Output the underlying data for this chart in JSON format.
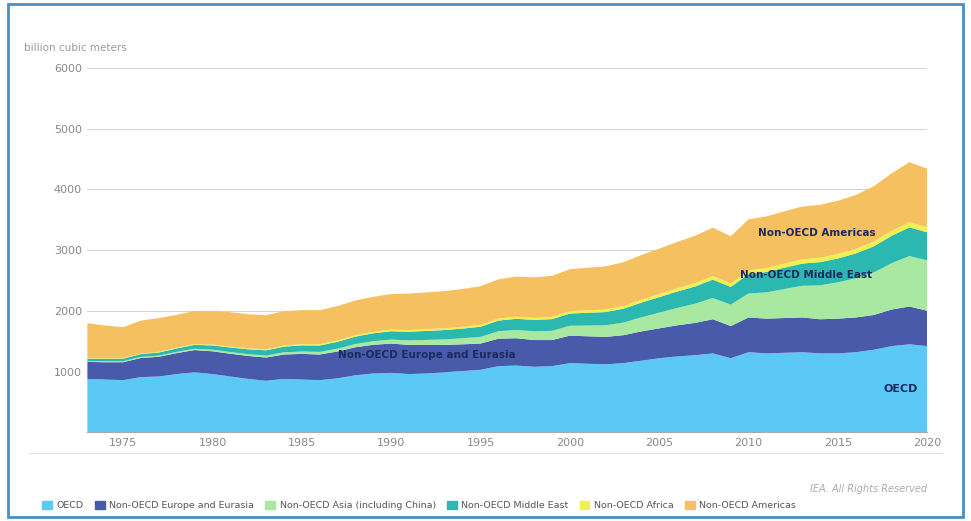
{
  "years": [
    1973,
    1974,
    1975,
    1976,
    1977,
    1978,
    1979,
    1980,
    1981,
    1982,
    1983,
    1984,
    1985,
    1986,
    1987,
    1988,
    1989,
    1990,
    1991,
    1992,
    1993,
    1994,
    1995,
    1996,
    1997,
    1998,
    1999,
    2000,
    2001,
    2002,
    2003,
    2004,
    2005,
    2006,
    2007,
    2008,
    2009,
    2010,
    2011,
    2012,
    2013,
    2014,
    2015,
    2016,
    2017,
    2018,
    2019,
    2020
  ],
  "OECD": [
    880,
    870,
    860,
    910,
    920,
    960,
    990,
    960,
    920,
    880,
    850,
    880,
    870,
    860,
    890,
    940,
    970,
    980,
    960,
    970,
    990,
    1010,
    1030,
    1090,
    1100,
    1080,
    1090,
    1140,
    1130,
    1120,
    1140,
    1180,
    1220,
    1250,
    1270,
    1300,
    1220,
    1320,
    1300,
    1310,
    1320,
    1300,
    1300,
    1320,
    1360,
    1420,
    1450,
    1420
  ],
  "NonOECD_EuropeEurasia": [
    280,
    285,
    295,
    315,
    325,
    345,
    365,
    375,
    375,
    378,
    382,
    402,
    422,
    422,
    442,
    462,
    472,
    482,
    480,
    470,
    450,
    440,
    432,
    452,
    450,
    440,
    430,
    452,
    452,
    452,
    460,
    482,
    492,
    512,
    532,
    562,
    530,
    572,
    572,
    572,
    572,
    562,
    572,
    572,
    572,
    602,
    622,
    582
  ],
  "NonOECD_Asia": [
    15,
    16,
    17,
    18,
    19,
    21,
    23,
    26,
    28,
    30,
    33,
    36,
    40,
    43,
    47,
    53,
    59,
    66,
    74,
    82,
    91,
    100,
    111,
    123,
    136,
    143,
    151,
    163,
    177,
    190,
    208,
    232,
    258,
    286,
    315,
    350,
    352,
    395,
    432,
    478,
    520,
    558,
    598,
    645,
    700,
    762,
    830,
    828
  ],
  "NonOECD_MiddleEast": [
    35,
    38,
    42,
    47,
    51,
    56,
    63,
    70,
    75,
    80,
    86,
    94,
    100,
    105,
    113,
    122,
    130,
    137,
    143,
    148,
    154,
    159,
    166,
    175,
    183,
    188,
    193,
    201,
    210,
    218,
    228,
    242,
    256,
    270,
    284,
    302,
    292,
    318,
    335,
    350,
    366,
    382,
    392,
    408,
    428,
    450,
    472,
    462
  ],
  "NonOECD_Africa": [
    8,
    9,
    9,
    10,
    11,
    12,
    13,
    14,
    15,
    16,
    17,
    18,
    20,
    21,
    22,
    24,
    26,
    27,
    28,
    29,
    30,
    31,
    32,
    34,
    35,
    36,
    37,
    39,
    41,
    42,
    44,
    47,
    50,
    53,
    56,
    59,
    57,
    62,
    65,
    67,
    69,
    72,
    74,
    76,
    79,
    83,
    87,
    85
  ],
  "NonOECD_Americas": [
    580,
    540,
    510,
    540,
    555,
    540,
    545,
    555,
    565,
    560,
    560,
    565,
    560,
    560,
    565,
    570,
    575,
    585,
    600,
    605,
    610,
    620,
    635,
    645,
    660,
    665,
    675,
    690,
    700,
    710,
    720,
    735,
    748,
    762,
    778,
    798,
    775,
    840,
    850,
    860,
    870,
    870,
    875,
    885,
    910,
    945,
    985,
    960
  ],
  "colors": {
    "OECD": "#5bc8f5",
    "NonOECD_EuropeEurasia": "#4a5aaa",
    "NonOECD_Asia": "#a8e8a0",
    "NonOECD_MiddleEast": "#2ab8b0",
    "NonOECD_Africa": "#f0f050",
    "NonOECD_Americas": "#f5c060"
  },
  "legend_labels": [
    "OECD",
    "Non-OECD Europe and Eurasia",
    "Non-OECD Asia (including China)",
    "Non-OECD Middle East",
    "Non-OECD Africa",
    "Non-OECD Americas"
  ],
  "ylabel": "billion cubic meters",
  "ylim": [
    0,
    6000
  ],
  "yticks": [
    0,
    1000,
    2000,
    3000,
    4000,
    5000,
    6000
  ],
  "background_color": "#ffffff",
  "plot_bg_color": "#ffffff",
  "border_color": "#4a8fc0",
  "iea_text": "IEA. All Rights Reserved"
}
